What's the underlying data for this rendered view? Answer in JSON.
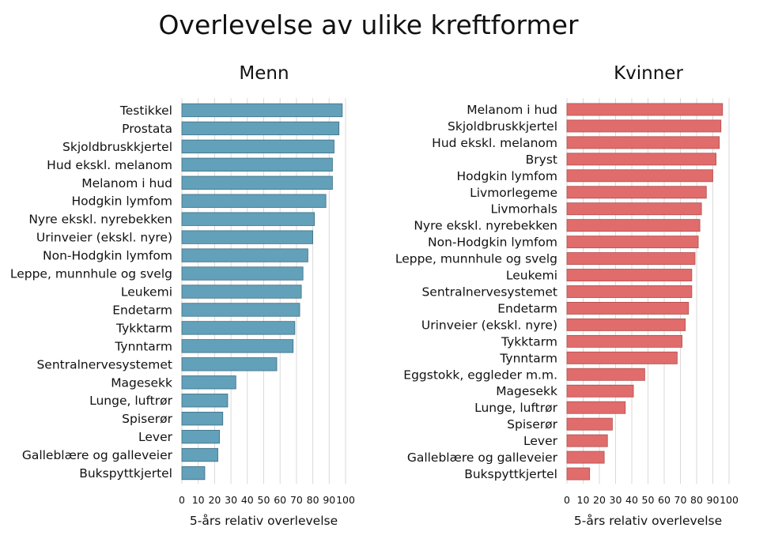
{
  "title": "Overlevelse av ulike kreftformer",
  "chart_data": [
    {
      "type": "bar",
      "orientation": "horizontal",
      "panel_title": "Menn",
      "xlabel": "5-års relativ overlevelse",
      "xlim": [
        0,
        100
      ],
      "xticks": [
        "0",
        "10",
        "20",
        "30",
        "40",
        "50",
        "60",
        "70",
        "80",
        "90",
        "100"
      ],
      "grid": true,
      "color": "#63a0b9",
      "edge_color": "#3e6f84",
      "categories": [
        "Testikkel",
        "Prostata",
        "Skjoldbruskkjertel",
        "Hud ekskl. melanom",
        "Melanom i hud",
        "Hodgkin lymfom",
        "Nyre ekskl. nyrebekken",
        "Urinveier (ekskl. nyre)",
        "Non-Hodgkin lymfom",
        "Leppe, munnhule og svelg",
        "Leukemi",
        "Endetarm",
        "Tykktarm",
        "Tynntarm",
        "Sentralnervesystemet",
        "Magesekk",
        "Lunge, luftrør",
        "Spiserør",
        "Lever",
        "Galleblære og galleveier",
        "Bukspyttkjertel"
      ],
      "values": [
        98,
        96,
        93,
        92,
        92,
        88,
        81,
        80,
        77,
        74,
        73,
        72,
        69,
        68,
        58,
        33,
        28,
        25,
        23,
        22,
        14
      ]
    },
    {
      "type": "bar",
      "orientation": "horizontal",
      "panel_title": "Kvinner",
      "xlabel": "5-års relativ overlevelse",
      "xlim": [
        0,
        100
      ],
      "xticks": [
        "0",
        "10",
        "20",
        "30",
        "40",
        "50",
        "60",
        "70",
        "80",
        "90",
        "100"
      ],
      "grid": true,
      "color": "#e06c6c",
      "edge_color": "#b34e4e",
      "categories": [
        "Melanom i hud",
        "Skjoldbruskkjertel",
        "Hud ekskl. melanom",
        "Bryst",
        "Hodgkin lymfom",
        "Livmorlegeme",
        "Livmorhals",
        "Nyre ekskl. nyrebekken",
        "Non-Hodgkin lymfom",
        "Leppe, munnhule og svelg",
        "Leukemi",
        "Sentralnervesystemet",
        "Endetarm",
        "Urinveier (ekskl. nyre)",
        "Tykktarm",
        "Tynntarm",
        "Eggstokk, eggleder m.m.",
        "Magesekk",
        "Lunge, luftrør",
        "Spiserør",
        "Lever",
        "Galleblære og galleveier",
        "Bukspyttkjertel"
      ],
      "values": [
        96,
        95,
        94,
        92,
        90,
        86,
        83,
        82,
        81,
        79,
        77,
        77,
        75,
        73,
        71,
        68,
        48,
        41,
        36,
        28,
        25,
        23,
        14
      ]
    }
  ]
}
